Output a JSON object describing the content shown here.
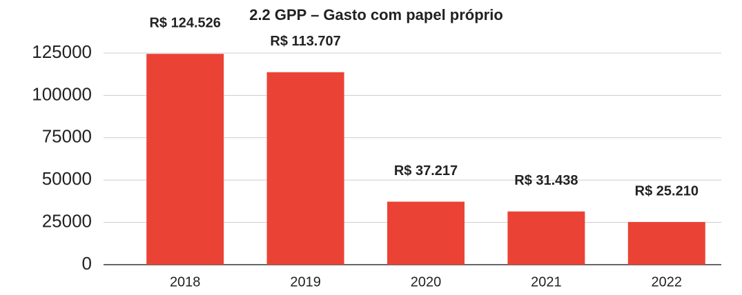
{
  "chart_data": {
    "type": "bar",
    "title": "2.2 GPP – Gasto com papel próprio",
    "categories": [
      "2018",
      "2019",
      "2020",
      "2021",
      "2022"
    ],
    "values": [
      124526,
      113707,
      37217,
      31438,
      25210
    ],
    "value_labels": [
      "R$ 124.526",
      "R$ 113.707",
      "R$ 37.217",
      "R$ 31.438",
      "R$ 25.210"
    ],
    "color": "#ea4335",
    "ylim": [
      0,
      125000
    ],
    "yticks": [
      0,
      25000,
      50000,
      75000,
      100000,
      125000
    ],
    "grid": true
  }
}
